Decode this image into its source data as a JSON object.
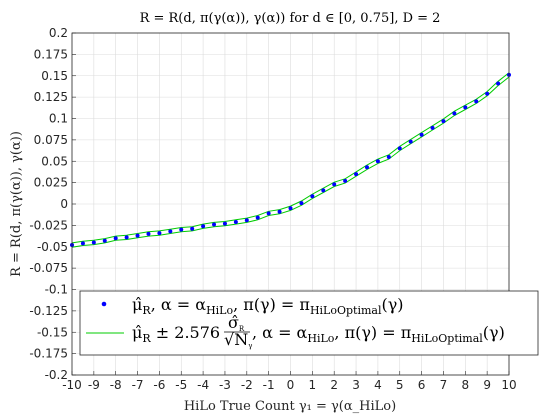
{
  "chart_data": {
    "type": "line",
    "title": "R = R(d, π(γ(α)), γ(α)) for d ∈ [0, 0.75], D = 2",
    "xlabel": "HiLo True Count γ₁ = γ(α_HiLo)",
    "ylabel": "R = R(d, π(γ(α)), γ(α))",
    "xlim": [
      -10,
      10
    ],
    "ylim": [
      -0.2,
      0.2
    ],
    "grid": true,
    "legend_position": "bottom-right",
    "x_ticks": [
      "-10",
      "-9",
      "-8",
      "-7",
      "-6",
      "-5",
      "-4",
      "-3",
      "-2",
      "-1",
      "0",
      "1",
      "2",
      "3",
      "4",
      "5",
      "6",
      "7",
      "8",
      "9",
      "10"
    ],
    "y_ticks": [
      "-0.2",
      "-0.175",
      "-0.15",
      "-0.125",
      "-0.1",
      "-0.075",
      "-0.05",
      "-0.025",
      "0",
      "0.025",
      "0.05",
      "0.075",
      "0.1",
      "0.125",
      "0.15",
      "0.175",
      "0.2"
    ],
    "x": [
      -10,
      -9.5,
      -9,
      -8.5,
      -8,
      -7.5,
      -7,
      -6.5,
      -6,
      -5.5,
      -5,
      -4.5,
      -4,
      -3.5,
      -3,
      -2.5,
      -2,
      -1.5,
      -1,
      -0.5,
      0,
      0.5,
      1,
      1.5,
      2,
      2.5,
      3,
      3.5,
      4,
      4.5,
      5,
      5.5,
      6,
      6.5,
      7,
      7.5,
      8,
      8.5,
      9,
      9.5,
      10
    ],
    "series": [
      {
        "name": "μ̂_R, α = α_HiLo, π(γ) = π_HiLoOptimal(γ)",
        "color": "#0000ff",
        "marker": "dot",
        "values": [
          -0.048,
          -0.046,
          -0.045,
          -0.043,
          -0.04,
          -0.039,
          -0.037,
          -0.035,
          -0.034,
          -0.032,
          -0.03,
          -0.029,
          -0.026,
          -0.024,
          -0.023,
          -0.021,
          -0.019,
          -0.016,
          -0.011,
          -0.009,
          -0.005,
          0.001,
          0.009,
          0.016,
          0.023,
          0.027,
          0.035,
          0.043,
          0.05,
          0.055,
          0.065,
          0.073,
          0.081,
          0.089,
          0.097,
          0.106,
          0.113,
          0.12,
          0.129,
          0.141,
          0.151
        ]
      },
      {
        "name": "μ̂_R ± 2.576 σ̂_R / √N_γ, α = α_HiLo, π(γ) = π_HiLoOptimal(γ)",
        "color": "#00cc00",
        "marker": "line",
        "half_width": 0.0025
      }
    ]
  },
  "legend": {
    "entry1": {
      "main": "μ̂",
      "sub_r": "R",
      "mid": ", α = α",
      "sub_hilo": "HiLo",
      "mid2": ", π(γ) = π",
      "sub_opt": "HiLoOptimal",
      "tail": "(γ)"
    },
    "entry2": {
      "main": "μ̂",
      "sub_r": "R",
      "pm": " ± 2.576",
      "frac_num": "σ̂",
      "frac_num_sub": "R",
      "frac_den": "√N",
      "frac_den_sub": "γ",
      "mid": ", α = α",
      "sub_hilo": "HiLo",
      "mid2": ", π(γ) = π",
      "sub_opt": "HiLoOptimal",
      "tail": "(γ)"
    }
  },
  "colors": {
    "mean": "#0000ff",
    "band": "#00cc00",
    "grid": "#dcdcdc",
    "axis": "#262626"
  }
}
